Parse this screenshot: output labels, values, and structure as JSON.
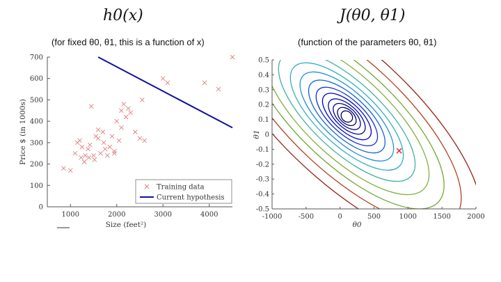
{
  "left": {
    "title": "h0(x)",
    "subtitle": "(for fixed θ0, θ1, this is a function of x)"
  },
  "right": {
    "title": "J(θ0, θ1)",
    "subtitle": "(function of the parameters θ0, θ1)"
  },
  "chart_data": [
    {
      "type": "scatter",
      "xlabel": "Size (feet²)",
      "ylabel": "Price $ (in 1000s)",
      "xlim": [
        500,
        4500
      ],
      "ylim": [
        0,
        700
      ],
      "xticks": [
        "1000",
        "2000",
        "3000",
        "4000"
      ],
      "yticks": [
        "0",
        "100",
        "200",
        "300",
        "400",
        "500",
        "600",
        "700"
      ],
      "series": [
        {
          "name": "Training data",
          "color": "#e08080",
          "x": [
            852,
            1000,
            1100,
            1150,
            1200,
            1230,
            1250,
            1300,
            1320,
            1380,
            1400,
            1420,
            1450,
            1500,
            1520,
            1550,
            1600,
            1600,
            1650,
            1700,
            1720,
            1750,
            1800,
            1850,
            1900,
            1950,
            1950,
            2000,
            2050,
            2100,
            2100,
            2150,
            2200,
            2250,
            2300,
            2400,
            2500,
            2550,
            2600,
            3000,
            3100,
            3900,
            4200,
            4500
          ],
          "y": [
            180,
            170,
            250,
            300,
            310,
            230,
            280,
            210,
            240,
            270,
            230,
            290,
            470,
            240,
            220,
            330,
            360,
            320,
            250,
            350,
            300,
            270,
            240,
            280,
            330,
            260,
            250,
            400,
            310,
            450,
            370,
            480,
            420,
            460,
            440,
            350,
            320,
            500,
            310,
            600,
            580,
            580,
            550,
            700
          ]
        },
        {
          "name": "Current hypothesis",
          "color": "#1010a0",
          "line": {
            "x0": 1600,
            "y0": 700,
            "x1": 4500,
            "y1": 370
          }
        }
      ],
      "legend_position": "bottom-right"
    },
    {
      "type": "contour",
      "xlabel": "θ0",
      "ylabel": "θ1",
      "xlim": [
        -1000,
        2000
      ],
      "ylim": [
        -0.5,
        0.5
      ],
      "xticks": [
        "-1000",
        "-500",
        "0",
        "500",
        "1000",
        "1500",
        "2000"
      ],
      "yticks": [
        "-0.5",
        "-0.4",
        "-0.3",
        "-0.2",
        "-0.1",
        "0",
        "0.1",
        "0.2",
        "0.3",
        "0.4",
        "0.5"
      ],
      "minimum": {
        "theta0": 100,
        "theta1": 0.12
      },
      "marker": {
        "theta0": 870,
        "theta1": -0.11,
        "color": "#e03030"
      },
      "level_colors": [
        "#000050",
        "#000070",
        "#000090",
        "#0000b0",
        "#0000c8",
        "#1030d0",
        "#1060d8",
        "#2090d8",
        "#30b0c0",
        "#40b0a0",
        "#80b040",
        "#70a830",
        "#b04020",
        "#902010"
      ]
    }
  ]
}
